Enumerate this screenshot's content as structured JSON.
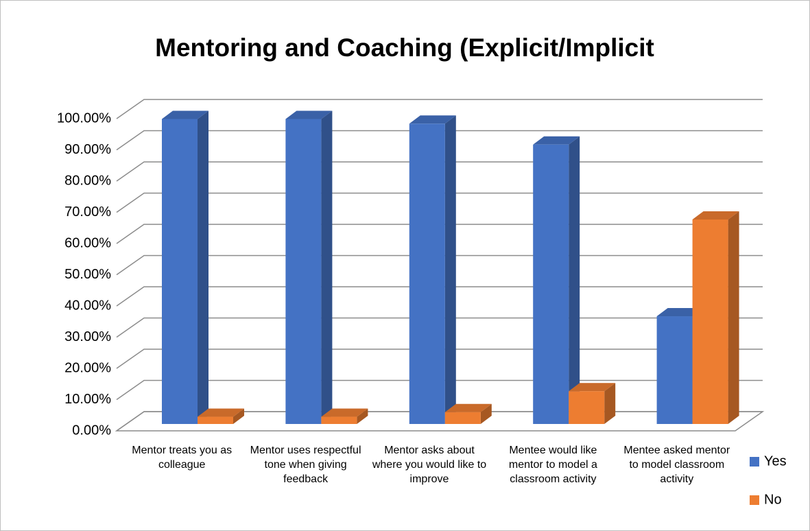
{
  "chart_data": {
    "type": "bar3d",
    "title": "Mentoring and Coaching (Explicit/Implicit",
    "categories": [
      "Mentor treats you as colleague",
      "Mentor uses respectful tone when giving feedback",
      "Mentor asks about where you would like to improve",
      "Mentee would like mentor to model a classroom activity",
      "Mentee asked mentor to model classroom activity"
    ],
    "series": [
      {
        "name": "Yes",
        "color": "#4472c4",
        "values": [
          97.7,
          97.7,
          96.2,
          89.5,
          34.5
        ]
      },
      {
        "name": "No",
        "color": "#ed7d31",
        "values": [
          2.3,
          2.3,
          3.8,
          10.5,
          65.5
        ]
      }
    ],
    "ylim": [
      0,
      100
    ],
    "yticks": [
      {
        "value": 0,
        "label": "0.00%"
      },
      {
        "value": 10,
        "label": "10.00%"
      },
      {
        "value": 20,
        "label": "20.00%"
      },
      {
        "value": 30,
        "label": "30.00%"
      },
      {
        "value": 40,
        "label": "40.00%"
      },
      {
        "value": 50,
        "label": "50.00%"
      },
      {
        "value": 60,
        "label": "60.00%"
      },
      {
        "value": 70,
        "label": "70.00%"
      },
      {
        "value": 80,
        "label": "80.00%"
      },
      {
        "value": 90,
        "label": "90.00%"
      },
      {
        "value": 100,
        "label": "100.00%"
      }
    ],
    "grid": true,
    "legend": "right"
  }
}
